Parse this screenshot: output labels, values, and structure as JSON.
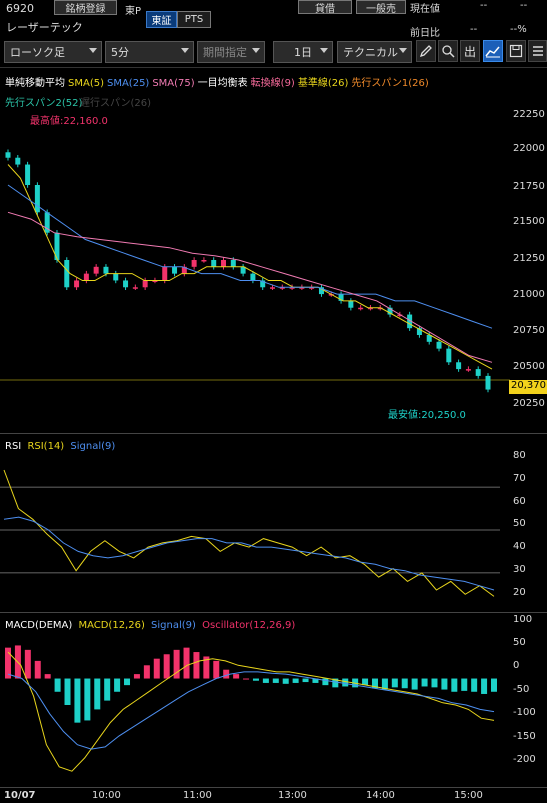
{
  "header": {
    "code": "6920",
    "register_label": "銘柄登録",
    "exchange_short": "東P",
    "exchange_tabs": [
      "東証",
      "PTS"
    ],
    "name": "レーザーテック",
    "buttons": [
      "貸借",
      "一般売"
    ],
    "current_price_label": "現在値",
    "current_price_value": "--",
    "prev_ratio_label": "前日比",
    "prev_ratio_value": "--",
    "prev_ratio_pct": "--%"
  },
  "toolbar": {
    "chart_type": "ローソク足",
    "interval": "5分",
    "period_label": "期間指定",
    "days": "1日",
    "technical_label": "テクニカル",
    "icons": [
      "pen-icon",
      "zoom-icon",
      "output-icon",
      "chart-icon",
      "save-icon",
      "list-icon"
    ]
  },
  "main_legend": {
    "items": [
      {
        "text": "単純移動平均",
        "color": "#ffffff"
      },
      {
        "text": "SMA(5)",
        "color": "#e8d51c"
      },
      {
        "text": "SMA(25)",
        "color": "#4e8ff0"
      },
      {
        "text": "SMA(75)",
        "color": "#f17bb3"
      },
      {
        "text": "一目均衡表",
        "color": "#ffffff"
      },
      {
        "text": "転換線(9)",
        "color": "#f56a9a"
      },
      {
        "text": "基準線(26)",
        "color": "#e8d51c"
      },
      {
        "text": "先行スパン1(26)",
        "color": "#f08a2a"
      }
    ],
    "line2": {
      "text": "先行スパン2(52)",
      "color": "#2bc3a8"
    },
    "line2_ghost": "遅行スパン(26)",
    "high_label": "最高値:22,160.0",
    "low_label": "最安値:20,250.0",
    "price_tag": "20,370"
  },
  "main_axis": [
    "22250",
    "22000",
    "21750",
    "21500",
    "21250",
    "21000",
    "20750",
    "20500",
    "20250"
  ],
  "rsi": {
    "title": "RSI",
    "items": [
      {
        "text": "RSI(14)",
        "color": "#e8d51c"
      },
      {
        "text": "Signal(9)",
        "color": "#4e8ff0"
      }
    ],
    "axis": [
      "80",
      "70",
      "60",
      "50",
      "40",
      "30",
      "20"
    ]
  },
  "macd": {
    "title": "MACD(DEMA)",
    "items": [
      {
        "text": "MACD(12,26)",
        "color": "#e8d51c"
      },
      {
        "text": "Signal(9)",
        "color": "#4e8ff0"
      },
      {
        "text": "Oscillator(12,26,9)",
        "color": "#f2336b"
      }
    ],
    "axis": [
      "100",
      "50",
      "0",
      "-50",
      "-100",
      "-150",
      "-200"
    ]
  },
  "time_axis": [
    "10/07",
    "10:00",
    "11:00",
    "13:00",
    "14:00",
    "15:00"
  ],
  "colors": {
    "up": "#f2336b",
    "down": "#1ed1c8",
    "bg": "#000000"
  },
  "chart_data": [
    {
      "type": "candlestick",
      "title": "",
      "ylim": [
        20150,
        22350
      ],
      "series_close": [
        22000,
        21950,
        21800,
        21600,
        21450,
        21250,
        21050,
        21100,
        21150,
        21200,
        21150,
        21100,
        21050,
        21050,
        21100,
        21100,
        21200,
        21150,
        21200,
        21250,
        21250,
        21200,
        21250,
        21200,
        21150,
        21100,
        21050,
        21050,
        21050,
        21050,
        21050,
        21050,
        21000,
        21000,
        20950,
        20900,
        20900,
        20900,
        20900,
        20850,
        20850,
        20750,
        20700,
        20650,
        20600,
        20500,
        20450,
        20450,
        20400,
        20300
      ],
      "sma5": [
        21950,
        21850,
        21650,
        21450,
        21250,
        21150,
        21100,
        21100,
        21150,
        21150,
        21150,
        21100,
        21100,
        21100,
        21150,
        21150,
        21200,
        21200,
        21200,
        21200,
        21150,
        21100,
        21100,
        21050,
        21050,
        21050,
        21000,
        20950,
        20950,
        20900,
        20900,
        20850,
        20800,
        20750,
        20700,
        20650,
        20600,
        20550,
        20500,
        20450
      ],
      "sma25": [
        21800,
        21700,
        21600,
        21500,
        21400,
        21350,
        21300,
        21250,
        21200,
        21200,
        21150,
        21150,
        21100,
        21100,
        21050,
        21050,
        21050,
        21000,
        21000,
        21000,
        20950,
        20950,
        20900,
        20850,
        20800,
        20750
      ],
      "sma75": [
        21600,
        21550,
        21450,
        21420,
        21400,
        21380,
        21360,
        21340,
        21300,
        21280,
        21250,
        21200,
        21150,
        21100,
        21050,
        21000,
        20950,
        20850,
        20750,
        20650,
        20550,
        20500
      ]
    },
    {
      "type": "line",
      "title": "",
      "ylim": [
        15,
        85
      ],
      "series": [
        {
          "name": "RSI(14)",
          "values": [
            78,
            60,
            55,
            48,
            42,
            31,
            40,
            45,
            40,
            37,
            42,
            44,
            45,
            47,
            46,
            40,
            44,
            42,
            46,
            44,
            42,
            38,
            42,
            37,
            38,
            34,
            28,
            32,
            26,
            30,
            22,
            26,
            20,
            24,
            19
          ]
        },
        {
          "name": "Signal(9)",
          "values": [
            55,
            56,
            54,
            50,
            44,
            40,
            38,
            37,
            38,
            40,
            42,
            44,
            45,
            46,
            46,
            44,
            44,
            42,
            42,
            41,
            40,
            39,
            38,
            37,
            35,
            34,
            32,
            31,
            29,
            28,
            27,
            26,
            24,
            22
          ]
        }
      ]
    },
    {
      "type": "bar+line",
      "title": "",
      "ylim": [
        -230,
        110
      ],
      "oscillator": [
        70,
        75,
        65,
        40,
        10,
        -30,
        -60,
        -100,
        -95,
        -70,
        -50,
        -30,
        -15,
        10,
        30,
        45,
        55,
        65,
        70,
        60,
        50,
        40,
        20,
        10,
        0,
        -5,
        -10,
        -10,
        -12,
        -10,
        -8,
        -10,
        -15,
        -20,
        -18,
        -20,
        -15,
        -22,
        -25,
        -20,
        -22,
        -25,
        -18,
        -20,
        -25,
        -30,
        -28,
        -30,
        -35,
        -30
      ],
      "series": [
        {
          "name": "MACD(12,26)",
          "values": [
            60,
            30,
            -40,
            -150,
            -200,
            -210,
            -180,
            -140,
            -100,
            -70,
            -50,
            -30,
            -10,
            10,
            30,
            40,
            45,
            40,
            30,
            25,
            20,
            15,
            15,
            10,
            5,
            0,
            -5,
            -10,
            -15,
            -20,
            -25,
            -30,
            -35,
            -45,
            -55,
            -60,
            -70,
            -90,
            -95
          ]
        },
        {
          "name": "Signal(9)",
          "values": [
            10,
            0,
            -30,
            -80,
            -120,
            -150,
            -160,
            -155,
            -130,
            -110,
            -90,
            -70,
            -50,
            -30,
            -15,
            0,
            10,
            15,
            15,
            12,
            10,
            5,
            0,
            -5,
            -10,
            -15,
            -20,
            -25,
            -30,
            -35,
            -40,
            -45,
            -55,
            -60,
            -70,
            -75
          ]
        }
      ]
    }
  ]
}
